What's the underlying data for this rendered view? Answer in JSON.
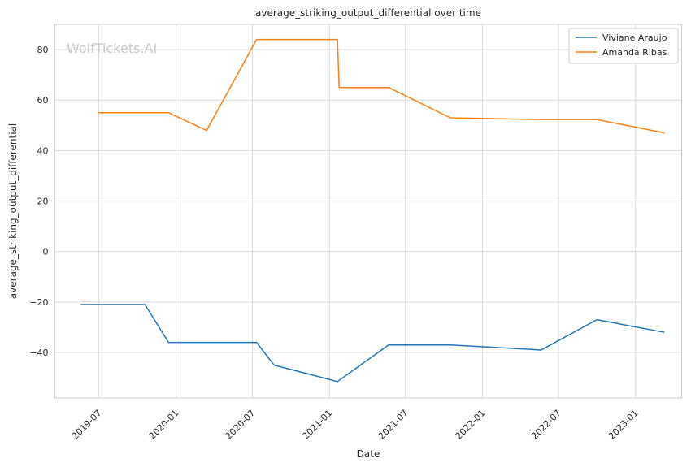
{
  "watermark": "WolfTickets.AI",
  "chart_data": {
    "type": "line",
    "title": "average_striking_output_differential over time",
    "xlabel": "Date",
    "ylabel": "average_striking_output_differential",
    "xlim": [
      "2019-03-18",
      "2023-04-21"
    ],
    "ylim": [
      -58,
      90
    ],
    "xticks": [
      "2019-07",
      "2020-01",
      "2020-07",
      "2021-01",
      "2021-07",
      "2022-01",
      "2022-07",
      "2023-01"
    ],
    "yticks": [
      -40,
      -20,
      0,
      20,
      40,
      60,
      80
    ],
    "grid": true,
    "legend_position": "top-right",
    "series": [
      {
        "name": "Viviane Araujo",
        "color": "#1f77b4",
        "points": [
          {
            "x": "2019-05-18",
            "y": -21
          },
          {
            "x": "2019-10-19",
            "y": -21
          },
          {
            "x": "2019-12-14",
            "y": -36
          },
          {
            "x": "2020-07-11",
            "y": -36
          },
          {
            "x": "2020-08-22",
            "y": -45
          },
          {
            "x": "2021-01-20",
            "y": -51.5
          },
          {
            "x": "2021-05-22",
            "y": -37
          },
          {
            "x": "2021-10-16",
            "y": -37
          },
          {
            "x": "2022-05-21",
            "y": -39
          },
          {
            "x": "2022-10-01",
            "y": -27
          },
          {
            "x": "2023-03-11",
            "y": -32
          }
        ]
      },
      {
        "name": "Amanda Ribas",
        "color": "#ff7f0e",
        "points": [
          {
            "x": "2019-06-29",
            "y": 55
          },
          {
            "x": "2019-12-14",
            "y": 55
          },
          {
            "x": "2020-03-14",
            "y": 48
          },
          {
            "x": "2020-07-11",
            "y": 84
          },
          {
            "x": "2021-01-20",
            "y": 84
          },
          {
            "x": "2021-01-24",
            "y": 65
          },
          {
            "x": "2021-05-22",
            "y": 65
          },
          {
            "x": "2021-10-16",
            "y": 53
          },
          {
            "x": "2022-05-21",
            "y": 52.3
          },
          {
            "x": "2022-10-01",
            "y": 52.3
          },
          {
            "x": "2023-03-11",
            "y": 47
          }
        ]
      }
    ]
  }
}
